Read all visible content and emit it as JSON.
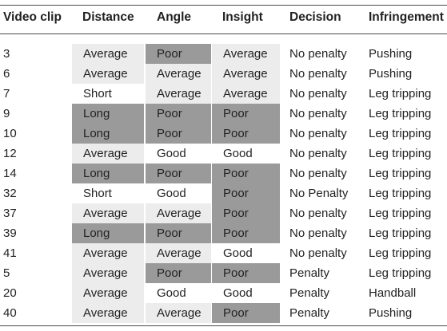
{
  "columns": {
    "clip": "Video clip",
    "distance": "Distance",
    "angle": "Angle",
    "insight": "Insight",
    "decision": "Decision",
    "infringement": "Infringement"
  },
  "rows": [
    {
      "clip": "3",
      "distance": "Average",
      "angle": "Poor",
      "insight": "Average",
      "decision": "No penalty",
      "infringement": "Pushing"
    },
    {
      "clip": "6",
      "distance": "Average",
      "angle": "Average",
      "insight": "Average",
      "decision": "No penalty",
      "infringement": "Pushing"
    },
    {
      "clip": "7",
      "distance": "Short",
      "angle": "Average",
      "insight": "Average",
      "decision": "No penalty",
      "infringement": "Leg tripping"
    },
    {
      "clip": "9",
      "distance": "Long",
      "angle": "Poor",
      "insight": "Poor",
      "decision": "No penalty",
      "infringement": "Leg tripping"
    },
    {
      "clip": "10",
      "distance": "Long",
      "angle": "Poor",
      "insight": "Poor",
      "decision": "No penalty",
      "infringement": "Leg tripping"
    },
    {
      "clip": "12",
      "distance": "Average",
      "angle": "Good",
      "insight": "Good",
      "decision": "No penalty",
      "infringement": "Leg tripping"
    },
    {
      "clip": "14",
      "distance": "Long",
      "angle": "Poor",
      "insight": "Poor",
      "decision": "No penalty",
      "infringement": "Leg tripping"
    },
    {
      "clip": "32",
      "distance": "Short",
      "angle": "Good",
      "insight": "Poor",
      "decision": "No Penalty",
      "infringement": "Leg tripping"
    },
    {
      "clip": "37",
      "distance": "Average",
      "angle": "Average",
      "insight": "Poor",
      "decision": "No penalty",
      "infringement": "Leg tripping"
    },
    {
      "clip": "39",
      "distance": "Long",
      "angle": "Poor",
      "insight": "Poor",
      "decision": "No penalty",
      "infringement": "Leg tripping"
    },
    {
      "clip": "41",
      "distance": "Average",
      "angle": "Average",
      "insight": "Good",
      "decision": "No penalty",
      "infringement": "Leg tripping"
    },
    {
      "clip": "5",
      "distance": "Average",
      "angle": "Poor",
      "insight": "Poor",
      "decision": "Penalty",
      "infringement": "Leg tripping"
    },
    {
      "clip": "20",
      "distance": "Average",
      "angle": "Good",
      "insight": "Good",
      "decision": "Penalty",
      "infringement": "Handball"
    },
    {
      "clip": "40",
      "distance": "Average",
      "angle": "Average",
      "insight": "Poor",
      "decision": "Penalty",
      "infringement": "Pushing"
    }
  ],
  "shading": {
    "Average": "#ececec",
    "Poor": "#9a9a9a",
    "Long": "#9a9a9a",
    "Short": "#ffffff",
    "Good": "#ffffff"
  }
}
